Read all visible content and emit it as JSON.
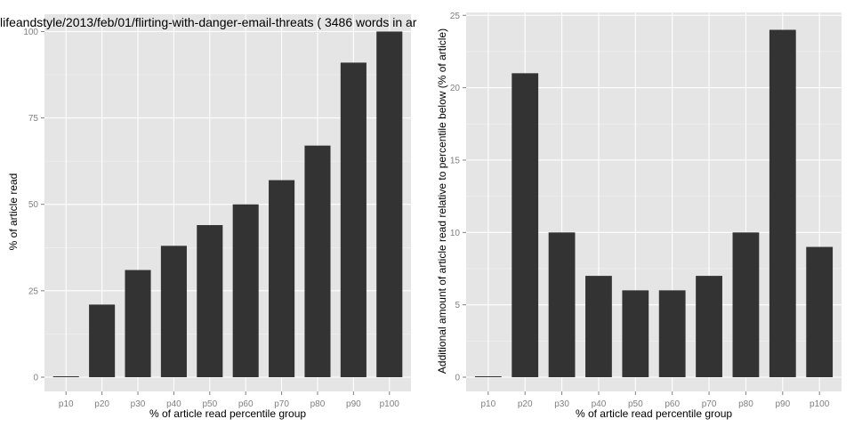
{
  "chart_data": [
    {
      "type": "bar",
      "title": "lifeandstyle/2013/feb/01/flirting-with-danger-email-threats ( 3486 words in ar",
      "xlabel": "% of article read percentile group",
      "ylabel": "% of article read",
      "categories": [
        "p10",
        "p20",
        "p30",
        "p40",
        "p50",
        "p60",
        "p70",
        "p80",
        "p90",
        "p100"
      ],
      "values": [
        0,
        21,
        31,
        38,
        44,
        50,
        57,
        67,
        91,
        100
      ],
      "ylim": [
        0,
        105
      ],
      "yticks": [
        0,
        25,
        50,
        75,
        100
      ],
      "grid": true
    },
    {
      "type": "bar",
      "title": "",
      "xlabel": "% of article read percentile group",
      "ylabel": "Additional amount of article read relative to percentile below (% of article)",
      "categories": [
        "p10",
        "p20",
        "p30",
        "p40",
        "p50",
        "p60",
        "p70",
        "p80",
        "p90",
        "p100"
      ],
      "values": [
        0,
        21,
        10,
        7,
        6,
        6,
        7,
        10,
        24,
        9
      ],
      "ylim": [
        0,
        25.2
      ],
      "yticks": [
        0,
        5,
        10,
        15,
        20,
        25
      ],
      "grid": true
    }
  ],
  "colors": {
    "panel_background": "#e5e5e5",
    "bar_fill": "#333333",
    "grid": "#ffffff"
  }
}
